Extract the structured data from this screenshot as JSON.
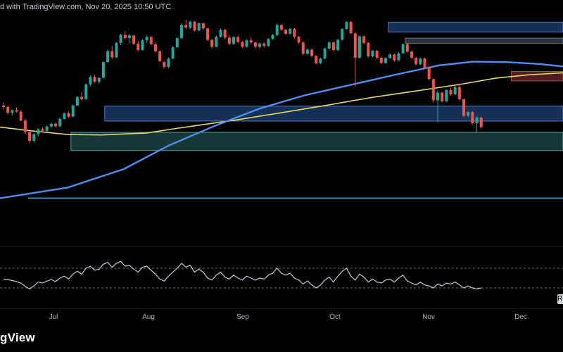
{
  "header": {
    "text": "d with TradingView.com, Nov 20, 2025 10:50 UTC"
  },
  "footer": {
    "logo_text": "gView"
  },
  "rsi_edge_label": "R",
  "colors": {
    "background": "#000000",
    "up_candle": "#26a69a",
    "down_candle": "#ef5350",
    "ma_long": "#4f8ef0",
    "ma_short": "#e5d861",
    "rsi_line": "#c6cbd6",
    "zone_blue": "#1e3f74",
    "zone_teal": "#1f4a48",
    "zone_red": "#6b2529",
    "zone_gray": "#3a4250",
    "support_line": "#26c6da"
  },
  "chart_data": {
    "type": "candlestick",
    "title": "",
    "x_ticks": [
      "Jul",
      "Aug",
      "Sep",
      "Oct",
      "Nov",
      "Dec"
    ],
    "y_range": [
      0,
      100
    ],
    "candles": [
      [
        58.0,
        59.5,
        56.2,
        57.4
      ],
      [
        57.4,
        58.1,
        54.0,
        54.8
      ],
      [
        54.8,
        56.4,
        53.6,
        56.0
      ],
      [
        56.0,
        57.2,
        54.9,
        55.3
      ],
      [
        55.3,
        55.9,
        50.8,
        51.2
      ],
      [
        51.2,
        52.0,
        45.1,
        46.0
      ],
      [
        46.0,
        46.4,
        40.8,
        42.0
      ],
      [
        42.0,
        45.5,
        41.2,
        44.9
      ],
      [
        44.9,
        47.8,
        44.0,
        47.3
      ],
      [
        47.3,
        48.1,
        46.0,
        46.5
      ],
      [
        46.5,
        49.0,
        46.1,
        48.5
      ],
      [
        48.5,
        50.2,
        47.6,
        49.8
      ],
      [
        49.8,
        50.4,
        48.0,
        48.6
      ],
      [
        48.6,
        52.6,
        48.2,
        52.0
      ],
      [
        52.0,
        55.0,
        51.6,
        54.6
      ],
      [
        54.6,
        55.3,
        52.4,
        53.0
      ],
      [
        53.0,
        58.6,
        52.8,
        58.1
      ],
      [
        58.1,
        62.5,
        57.9,
        62.0
      ],
      [
        62.0,
        64.3,
        60.4,
        61.0
      ],
      [
        61.0,
        68.2,
        60.8,
        67.8
      ],
      [
        67.8,
        72.0,
        67.0,
        71.2
      ],
      [
        71.2,
        72.2,
        68.5,
        69.0
      ],
      [
        69.0,
        71.0,
        68.0,
        70.8
      ],
      [
        70.8,
        78.4,
        70.6,
        78.0
      ],
      [
        78.0,
        83.6,
        77.8,
        83.0
      ],
      [
        83.0,
        85.4,
        79.5,
        80.2
      ],
      [
        80.2,
        87.2,
        79.8,
        86.8
      ],
      [
        86.8,
        91.0,
        85.8,
        90.5
      ],
      [
        90.5,
        92.2,
        88.4,
        89.0
      ],
      [
        89.0,
        91.0,
        86.6,
        90.2
      ],
      [
        90.2,
        90.6,
        85.8,
        86.4
      ],
      [
        86.4,
        87.6,
        82.8,
        83.5
      ],
      [
        83.5,
        88.6,
        83.2,
        88.0
      ],
      [
        88.0,
        90.2,
        87.0,
        89.5
      ],
      [
        89.5,
        89.9,
        85.6,
        86.2
      ],
      [
        86.2,
        87.0,
        82.4,
        83.0
      ],
      [
        83.0,
        83.4,
        78.0,
        78.5
      ],
      [
        78.0,
        78.4,
        75.0,
        75.8
      ],
      [
        75.8,
        80.2,
        75.2,
        79.6
      ],
      [
        79.6,
        85.2,
        79.2,
        84.8
      ],
      [
        84.8,
        89.4,
        84.6,
        89.0
      ],
      [
        89.0,
        95.8,
        88.8,
        95.0
      ],
      [
        95.0,
        97.4,
        93.2,
        93.8
      ],
      [
        93.8,
        97.0,
        93.0,
        96.5
      ],
      [
        96.5,
        96.9,
        92.0,
        92.5
      ],
      [
        92.5,
        96.2,
        92.2,
        95.8
      ],
      [
        95.8,
        96.2,
        92.8,
        93.4
      ],
      [
        93.4,
        93.8,
        87.6,
        88.2
      ],
      [
        88.2,
        88.7,
        84.3,
        85.0
      ],
      [
        85.0,
        90.2,
        84.7,
        89.6
      ],
      [
        89.6,
        93.4,
        89.2,
        92.8
      ],
      [
        92.8,
        93.3,
        88.4,
        89.2
      ],
      [
        89.2,
        90.4,
        85.6,
        86.4
      ],
      [
        86.4,
        89.9,
        86.0,
        89.5
      ],
      [
        89.5,
        90.1,
        86.6,
        87.2
      ],
      [
        87.2,
        87.6,
        84.4,
        85.0
      ],
      [
        85.0,
        88.6,
        84.6,
        88.0
      ],
      [
        88.0,
        89.4,
        86.5,
        87.0
      ],
      [
        87.0,
        87.4,
        84.3,
        85.0
      ],
      [
        85.0,
        87.1,
        84.3,
        86.5
      ],
      [
        86.5,
        87.0,
        84.8,
        85.4
      ],
      [
        85.4,
        89.1,
        85.0,
        88.6
      ],
      [
        88.6,
        91.0,
        88.2,
        90.4
      ],
      [
        90.4,
        95.6,
        90.0,
        95.0
      ],
      [
        95.0,
        95.4,
        92.3,
        92.8
      ],
      [
        92.8,
        93.2,
        90.4,
        91.0
      ],
      [
        91.0,
        93.6,
        90.6,
        93.2
      ],
      [
        93.2,
        93.6,
        89.0,
        89.6
      ],
      [
        89.6,
        90.0,
        86.4,
        87.0
      ],
      [
        87.0,
        87.5,
        81.2,
        81.8
      ],
      [
        81.8,
        84.3,
        81.4,
        83.8
      ],
      [
        83.8,
        84.2,
        80.2,
        80.8
      ],
      [
        80.8,
        81.2,
        76.9,
        77.5
      ],
      [
        77.5,
        80.1,
        77.1,
        79.6
      ],
      [
        79.6,
        84.6,
        79.3,
        84.2
      ],
      [
        84.2,
        87.6,
        83.8,
        87.0
      ],
      [
        87.0,
        87.6,
        82.9,
        83.5
      ],
      [
        83.5,
        88.6,
        83.1,
        88.2
      ],
      [
        88.2,
        93.6,
        87.9,
        93.2
      ],
      [
        93.2,
        96.9,
        92.8,
        96.4
      ],
      [
        96.4,
        96.8,
        90.8,
        91.2
      ],
      [
        91.2,
        91.6,
        66.8,
        80.0
      ],
      [
        80.0,
        90.3,
        79.6,
        89.8
      ],
      [
        89.8,
        90.2,
        86.2,
        86.8
      ],
      [
        86.8,
        87.2,
        80.0,
        80.6
      ],
      [
        80.6,
        83.6,
        80.2,
        83.2
      ],
      [
        83.2,
        83.6,
        79.4,
        80.0
      ],
      [
        80.0,
        80.5,
        77.0,
        77.6
      ],
      [
        77.6,
        80.2,
        77.2,
        79.8
      ],
      [
        79.8,
        82.0,
        79.4,
        81.5
      ],
      [
        81.5,
        81.9,
        78.1,
        78.8
      ],
      [
        78.8,
        82.6,
        78.4,
        82.0
      ],
      [
        82.0,
        86.6,
        81.7,
        86.2
      ],
      [
        86.2,
        86.7,
        82.2,
        82.8
      ],
      [
        82.8,
        83.3,
        79.4,
        80.0
      ],
      [
        80.0,
        80.4,
        76.5,
        77.0
      ],
      [
        77.0,
        80.2,
        76.6,
        79.6
      ],
      [
        79.6,
        80.0,
        74.9,
        75.4
      ],
      [
        75.4,
        75.9,
        69.6,
        70.2
      ],
      [
        70.2,
        70.6,
        59.4,
        60.5
      ],
      [
        60.5,
        64.9,
        50.2,
        64.0
      ],
      [
        64.0,
        64.4,
        59.4,
        60.0
      ],
      [
        60.0,
        65.6,
        59.6,
        65.2
      ],
      [
        65.2,
        66.2,
        62.6,
        63.2
      ],
      [
        63.2,
        67.1,
        62.8,
        66.6
      ],
      [
        66.6,
        67.6,
        60.4,
        61.0
      ],
      [
        61.0,
        61.4,
        52.8,
        53.4
      ],
      [
        53.4,
        55.6,
        52.6,
        55.1
      ],
      [
        55.1,
        55.5,
        49.3,
        50.0
      ],
      [
        50.0,
        53.2,
        46.0,
        52.6
      ],
      [
        52.6,
        53.0,
        47.6,
        48.2
      ]
    ],
    "ma_long": [
      [
        0,
        15.6
      ],
      [
        12,
        20.5
      ],
      [
        22,
        29.0
      ],
      [
        30,
        39.8
      ],
      [
        38,
        48.6
      ],
      [
        46,
        56.6
      ],
      [
        54,
        62.7
      ],
      [
        62,
        67.4
      ],
      [
        70,
        72.1
      ],
      [
        78,
        76.5
      ],
      [
        84,
        78.2
      ],
      [
        90,
        78.0
      ],
      [
        96,
        77.1
      ],
      [
        100,
        76.0
      ]
    ],
    "ma_short": [
      [
        0,
        48.2
      ],
      [
        6,
        46.4
      ],
      [
        12,
        44.8
      ],
      [
        18,
        44.6
      ],
      [
        26,
        45.5
      ],
      [
        34,
        48.6
      ],
      [
        42,
        51.5
      ],
      [
        50,
        54.8
      ],
      [
        58,
        58.2
      ],
      [
        66,
        61.8
      ],
      [
        74,
        64.8
      ],
      [
        82,
        67.9
      ],
      [
        88,
        70.6
      ],
      [
        94,
        72.2
      ],
      [
        100,
        73.1
      ]
    ],
    "zones": [
      {
        "kind": "blue",
        "x": [
          69.0,
          100
        ],
        "y": [
          96.3,
          91.8
        ]
      },
      {
        "kind": "gray",
        "x": [
          72.0,
          100
        ],
        "y": [
          89.0,
          86.6
        ]
      },
      {
        "kind": "red",
        "x": [
          90.8,
          100
        ],
        "y": [
          73.7,
          69.4
        ]
      },
      {
        "kind": "blue",
        "x": [
          18.6,
          100
        ],
        "y": [
          57.8,
          51.0
        ]
      },
      {
        "kind": "teal",
        "x": [
          12.6,
          100
        ],
        "y": [
          45.8,
          37.5
        ]
      }
    ],
    "support_y": 15.7,
    "support_start_x": 5.0,
    "rsi": {
      "range": [
        0,
        100
      ],
      "levels": [
        70,
        30
      ],
      "values": [
        48,
        47,
        45,
        43,
        40,
        33,
        28,
        34,
        42,
        40,
        44,
        47,
        43,
        50,
        54,
        48,
        58,
        64,
        58,
        70,
        74,
        66,
        68,
        78,
        82,
        72,
        80,
        84,
        74,
        76,
        68,
        62,
        72,
        74,
        66,
        58,
        48,
        44,
        54,
        62,
        70,
        80,
        72,
        76,
        62,
        68,
        62,
        50,
        46,
        56,
        62,
        52,
        48,
        56,
        50,
        46,
        54,
        50,
        46,
        50,
        48,
        56,
        60,
        70,
        60,
        56,
        60,
        50,
        46,
        38,
        44,
        36,
        30,
        36,
        46,
        52,
        42,
        54,
        64,
        70,
        54,
        46,
        58,
        52,
        42,
        48,
        42,
        40,
        46,
        48,
        42,
        50,
        56,
        44,
        40,
        36,
        42,
        36,
        34,
        30,
        38,
        34,
        40,
        38,
        42,
        36,
        30,
        34,
        30,
        28,
        30
      ]
    }
  }
}
